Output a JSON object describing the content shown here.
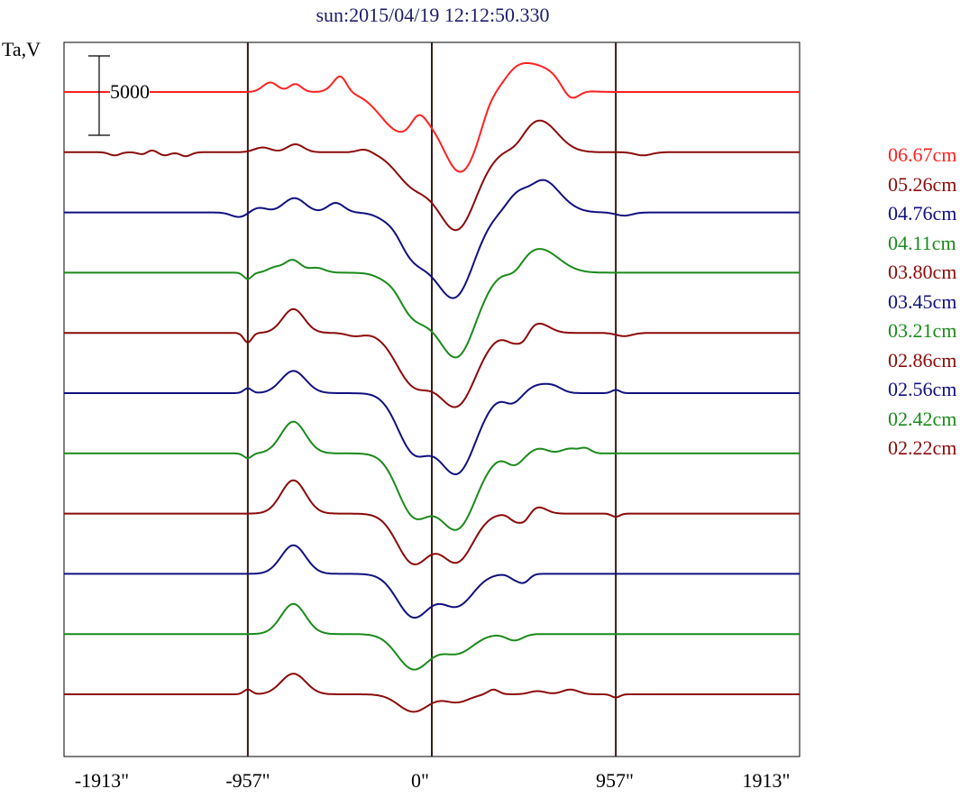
{
  "title": "sun:2015/04/19 12:12:50.330",
  "ylabel": "Ta,V",
  "colors": {
    "red": "#ff2020",
    "darkred": "#8b0a0a",
    "navy": "#101080",
    "green": "#1a8a1a",
    "grid": "#3a1a1a"
  },
  "chart_data": {
    "type": "line",
    "title": "sun:2015/04/19 12:12:50.330",
    "ylabel": "Ta,V",
    "xlim": [
      -1913,
      1913
    ],
    "x_ticks": [
      "-1913\"",
      "-957\"",
      "0\"",
      "957\"",
      "1913\""
    ],
    "x_tick_values": [
      -1913,
      -957,
      0,
      957,
      1913
    ],
    "vlines": [
      -957,
      0,
      957
    ],
    "scale_bar": {
      "label": "5000",
      "value": 5000
    },
    "grid": false,
    "legend_position": "right",
    "series": [
      {
        "name": "06.67cm",
        "color": "red",
        "features": [
          [
            -840,
            600,
            55
          ],
          [
            -710,
            500,
            45
          ],
          [
            -490,
            550,
            55
          ],
          [
            -470,
            500,
            40
          ],
          [
            -160,
            -2500,
            150
          ],
          [
            -70,
            700,
            50
          ],
          [
            150,
            -5000,
            140
          ],
          [
            300,
            500,
            60
          ],
          [
            430,
            900,
            100
          ],
          [
            560,
            1500,
            150
          ],
          [
            720,
            -800,
            60
          ]
        ]
      },
      {
        "name": "05.26cm",
        "color": "darkred",
        "features": [
          [
            -1650,
            -200,
            40
          ],
          [
            -1490,
            -300,
            40
          ],
          [
            -1470,
            300,
            40
          ],
          [
            -1390,
            -200,
            40
          ],
          [
            -1280,
            -250,
            40
          ],
          [
            -880,
            300,
            60
          ],
          [
            -710,
            500,
            60
          ],
          [
            -350,
            200,
            50
          ],
          [
            -95,
            -2000,
            130
          ],
          [
            130,
            -4800,
            140
          ],
          [
            440,
            -300,
            60
          ],
          [
            560,
            2000,
            130
          ],
          [
            1100,
            -200,
            60
          ]
        ]
      },
      {
        "name": "04.76cm",
        "color": "navy",
        "features": [
          [
            -1000,
            -300,
            60
          ],
          [
            -900,
            300,
            60
          ],
          [
            -715,
            900,
            80
          ],
          [
            -500,
            600,
            60
          ],
          [
            -190,
            300,
            60
          ],
          [
            -95,
            -2700,
            130
          ],
          [
            120,
            -5200,
            140
          ],
          [
            430,
            300,
            60
          ],
          [
            520,
            -300,
            60
          ],
          [
            560,
            2200,
            140
          ],
          [
            1000,
            -200,
            60
          ]
        ]
      },
      {
        "name": "04.11cm",
        "color": "green",
        "features": [
          [
            -957,
            -400,
            30
          ],
          [
            -820,
            300,
            50
          ],
          [
            -725,
            800,
            60
          ],
          [
            -600,
            300,
            60
          ],
          [
            -190,
            300,
            60
          ],
          [
            -95,
            -2600,
            130
          ],
          [
            130,
            -5200,
            140
          ],
          [
            430,
            -500,
            60
          ],
          [
            560,
            1500,
            140
          ]
        ]
      },
      {
        "name": "03.80cm",
        "color": "darkred",
        "features": [
          [
            -957,
            -600,
            30
          ],
          [
            -720,
            1500,
            80
          ],
          [
            -400,
            -200,
            60
          ],
          [
            -95,
            -3100,
            130
          ],
          [
            130,
            -4500,
            140
          ],
          [
            430,
            -600,
            60
          ],
          [
            480,
            -400,
            40
          ],
          [
            555,
            600,
            80
          ],
          [
            1000,
            -200,
            60
          ]
        ]
      },
      {
        "name": "03.45cm",
        "color": "navy",
        "features": [
          [
            -957,
            300,
            30
          ],
          [
            -720,
            1400,
            90
          ],
          [
            -95,
            -3500,
            120
          ],
          [
            130,
            -5000,
            140
          ],
          [
            420,
            -600,
            60
          ],
          [
            560,
            500,
            80
          ],
          [
            640,
            300,
            60
          ],
          [
            957,
            200,
            30
          ]
        ]
      },
      {
        "name": "03.21cm",
        "color": "green",
        "features": [
          [
            -957,
            -300,
            30
          ],
          [
            -720,
            2000,
            90
          ],
          [
            -95,
            -3700,
            120
          ],
          [
            130,
            -4700,
            140
          ],
          [
            430,
            -700,
            60
          ],
          [
            560,
            300,
            60
          ],
          [
            720,
            300,
            60
          ],
          [
            800,
            300,
            40
          ]
        ]
      },
      {
        "name": "02.86cm",
        "color": "darkred",
        "features": [
          [
            -720,
            2100,
            90
          ],
          [
            -95,
            -3100,
            120
          ],
          [
            130,
            -3000,
            120
          ],
          [
            430,
            -400,
            40
          ],
          [
            480,
            -500,
            40
          ],
          [
            555,
            400,
            60
          ],
          [
            957,
            -200,
            30
          ]
        ]
      },
      {
        "name": "02.56cm",
        "color": "navy",
        "features": [
          [
            -720,
            1800,
            90
          ],
          [
            -95,
            -2700,
            120
          ],
          [
            130,
            -2000,
            120
          ],
          [
            430,
            -300,
            40
          ],
          [
            480,
            -500,
            40
          ]
        ]
      },
      {
        "name": "02.42cm",
        "color": "green",
        "features": [
          [
            -720,
            1900,
            90
          ],
          [
            -95,
            -2200,
            120
          ],
          [
            130,
            -1200,
            120
          ],
          [
            430,
            -400,
            60
          ]
        ]
      },
      {
        "name": "02.22cm",
        "color": "darkred",
        "features": [
          [
            -957,
            300,
            30
          ],
          [
            -720,
            1300,
            90
          ],
          [
            -95,
            -1100,
            110
          ],
          [
            130,
            -500,
            90
          ],
          [
            320,
            300,
            40
          ],
          [
            550,
            200,
            60
          ],
          [
            720,
            300,
            60
          ],
          [
            957,
            -200,
            30
          ]
        ]
      }
    ]
  }
}
